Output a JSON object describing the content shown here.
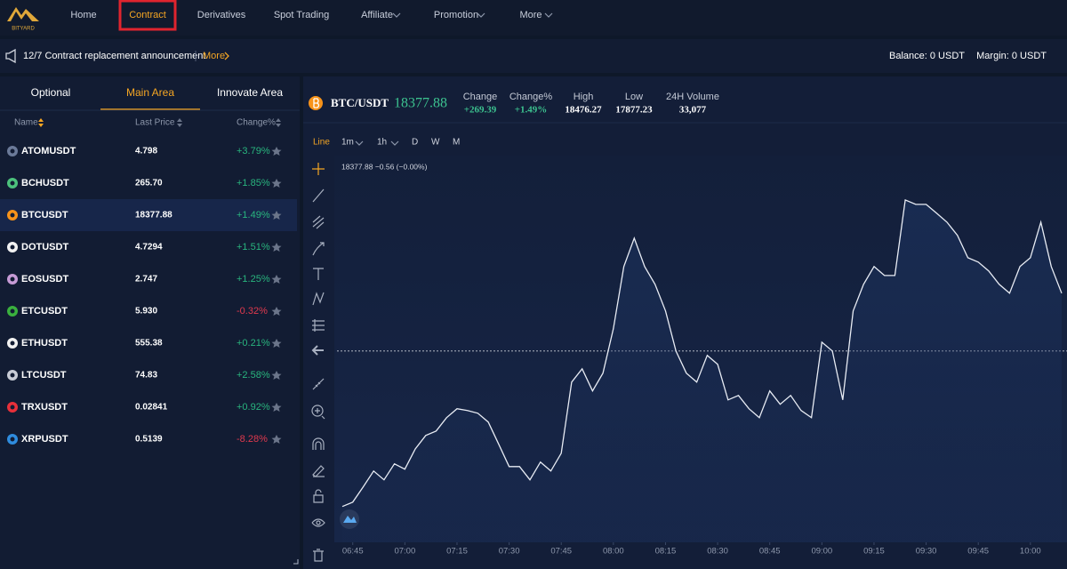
{
  "nav": {
    "logo": "BITYARD",
    "items": [
      "Home",
      "Contract",
      "Derivatives",
      "Spot Trading",
      "Affiliate",
      "Promotion",
      "More"
    ],
    "active": 1
  },
  "announcement": {
    "text": "12/7 Contract replacement announcement",
    "more": "More",
    "balance": "Balance: 0 USDT",
    "margin": "Margin: 0 USDT"
  },
  "market": {
    "tabs": [
      "Optional",
      "Main Area",
      "Innovate Area"
    ],
    "active_tab": 1,
    "columns": [
      "Name",
      "Last Price",
      "Change%"
    ],
    "selected": 2,
    "rows": [
      {
        "symbol": "ATOMUSDT",
        "price": "4.798",
        "change": "+3.79%"
      },
      {
        "symbol": "BCHUSDT",
        "price": "265.70",
        "change": "+1.85%"
      },
      {
        "symbol": "BTCUSDT",
        "price": "18377.88",
        "change": "+1.49%"
      },
      {
        "symbol": "DOTUSDT",
        "price": "4.7294",
        "change": "+1.51%"
      },
      {
        "symbol": "EOSUSDT",
        "price": "2.747",
        "change": "+1.25%"
      },
      {
        "symbol": "ETCUSDT",
        "price": "5.930",
        "change": "-0.32%"
      },
      {
        "symbol": "ETHUSDT",
        "price": "555.38",
        "change": "+0.21%"
      },
      {
        "symbol": "LTCUSDT",
        "price": "74.83",
        "change": "+2.58%"
      },
      {
        "symbol": "TRXUSDT",
        "price": "0.02841",
        "change": "+0.92%"
      },
      {
        "symbol": "XRPUSDT",
        "price": "0.5139",
        "change": "-8.28%"
      }
    ]
  },
  "ticker": {
    "pair": "BTC/USDT",
    "price": "18377.88",
    "stats": [
      {
        "label": "Change",
        "value": "+269.39"
      },
      {
        "label": "Change%",
        "value": "+1.49%"
      },
      {
        "label": "High",
        "value": "18476.27"
      },
      {
        "label": "Low",
        "value": "17877.23"
      },
      {
        "label": "24H Volume",
        "value": "33,077"
      }
    ]
  },
  "chart_toolbar": {
    "items": [
      "Line",
      "1m",
      "1h",
      "D",
      "W",
      "M"
    ],
    "active": 0,
    "readout": "18377.88 −0.56 (−0.00%)"
  },
  "chart_data": {
    "type": "line",
    "color": "#e8ecf4",
    "x": [
      "06:42",
      "06:45",
      "06:48",
      "06:51",
      "06:54",
      "06:57",
      "07:00",
      "07:03",
      "07:06",
      "07:09",
      "07:12",
      "07:15",
      "07:18",
      "07:21",
      "07:24",
      "07:27",
      "07:30",
      "07:33",
      "07:36",
      "07:39",
      "07:42",
      "07:45",
      "07:48",
      "07:51",
      "07:54",
      "07:57",
      "08:00",
      "08:03",
      "08:06",
      "08:09",
      "08:12",
      "08:15",
      "08:18",
      "08:21",
      "08:24",
      "08:27",
      "08:30",
      "08:33",
      "08:36",
      "08:39",
      "08:42",
      "08:45",
      "08:48",
      "08:51",
      "08:54",
      "08:57",
      "09:00",
      "09:03",
      "09:06",
      "09:09",
      "09:12",
      "09:15",
      "09:18",
      "09:21",
      "09:24",
      "09:27",
      "09:30",
      "09:33",
      "09:36",
      "09:39",
      "09:42",
      "09:45",
      "09:48",
      "09:51",
      "09:54",
      "09:57",
      "10:00",
      "10:03",
      "10:06",
      "10:09"
    ],
    "values": [
      18282.5,
      18285.2,
      18294.5,
      18304.3,
      18298.9,
      18308.7,
      18305.4,
      18317.9,
      18326.1,
      18328.8,
      18337.0,
      18342.5,
      18341.4,
      18339.7,
      18334.3,
      18320.7,
      18307.0,
      18307.0,
      18298.9,
      18309.8,
      18304.3,
      18315.2,
      18358.8,
      18367.0,
      18353.4,
      18364.3,
      18391.5,
      18429.7,
      18447.1,
      18429.7,
      18418.8,
      18402.4,
      18377.9,
      18364.3,
      18358.8,
      18375.2,
      18369.7,
      18347.9,
      18350.6,
      18342.5,
      18337.0,
      18353.4,
      18345.2,
      18350.6,
      18341.4,
      18337.0,
      18383.3,
      18377.9,
      18347.9,
      18402.4,
      18418.8,
      18429.7,
      18424.2,
      18424.2,
      18470.5,
      18467.8,
      18467.8,
      18462.4,
      18456.9,
      18448.8,
      18435.1,
      18432.4,
      18427.0,
      18418.8,
      18413.3,
      18429.7,
      18435.1,
      18456.9,
      18429.7,
      18413.3
    ],
    "xticks": [
      "06:45",
      "07:00",
      "07:15",
      "07:30",
      "07:45",
      "08:00",
      "08:15",
      "08:30",
      "08:45",
      "09:00",
      "09:15",
      "09:30",
      "09:45",
      "10:00"
    ],
    "ylim": [
      18266,
      18495
    ],
    "price_line": 18377.88
  }
}
